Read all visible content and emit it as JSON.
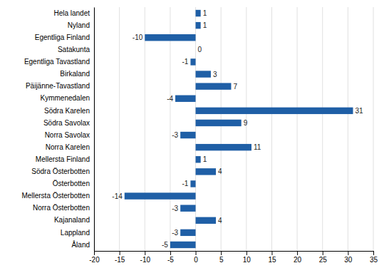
{
  "chart_data": {
    "type": "bar",
    "orientation": "horizontal",
    "categories": [
      "Hela landet",
      "Nyland",
      "Egentliga Finland",
      "Satakunta",
      "Egentliga Tavastland",
      "Birkaland",
      "Päijänne-Tavastland",
      "Kymmenedalen",
      "Södra Karelen",
      "Södra Savolax",
      "Norra Savolax",
      "Norra Karelen",
      "Mellersta Finland",
      "Södra Österbotten",
      "Österbotten",
      "Mellersta Österbotten",
      "Norra Österbotten",
      "Kajanaland",
      "Lappland",
      "Åland"
    ],
    "values": [
      1,
      1,
      -10,
      0,
      -1,
      3,
      7,
      -4,
      31,
      9,
      -3,
      11,
      1,
      4,
      -1,
      -14,
      -3,
      4,
      -3,
      -5
    ],
    "color": "#1F5FA6",
    "xlim": [
      -20,
      35
    ],
    "xticks": [
      -20,
      -15,
      -10,
      -5,
      0,
      5,
      10,
      15,
      20,
      25,
      30,
      35
    ],
    "grid": true,
    "data_labels": true
  }
}
